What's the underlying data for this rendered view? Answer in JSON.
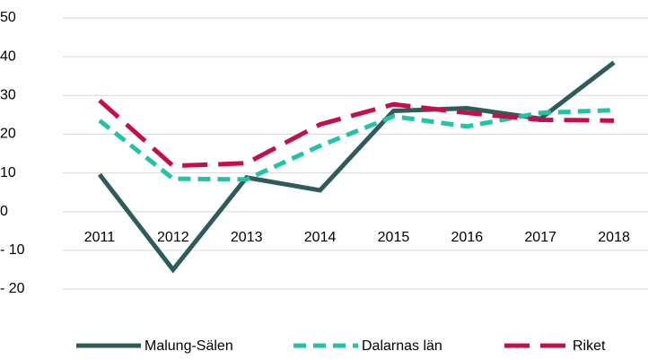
{
  "chart_data": {
    "type": "line",
    "categories": [
      "2011",
      "2012",
      "2013",
      "2014",
      "2015",
      "2016",
      "2017",
      "2018"
    ],
    "series": [
      {
        "name": "Malung-Sälen",
        "color": "#2f5b5d",
        "dash": "solid",
        "values": [
          9.6,
          -15,
          8.8,
          5.5,
          26,
          26.7,
          24,
          38.5
        ]
      },
      {
        "name": "Dalarnas län",
        "color": "#22c4a6",
        "dash": "dashed",
        "values": [
          23.5,
          8.5,
          8.3,
          17,
          24.6,
          22,
          25.5,
          26.2
        ]
      },
      {
        "name": "Riket",
        "color": "#c3104c",
        "dash": "longdash",
        "values": [
          28.7,
          11.8,
          12.5,
          22.5,
          27.7,
          25.5,
          23.7,
          23.5
        ]
      }
    ],
    "ylim": [
      -20,
      50
    ],
    "yticks": [
      {
        "value": -20,
        "label": "- 20"
      },
      {
        "value": -10,
        "label": "- 10"
      },
      0,
      10,
      20,
      30,
      40,
      50
    ],
    "grid": true,
    "legend": "bottom"
  }
}
